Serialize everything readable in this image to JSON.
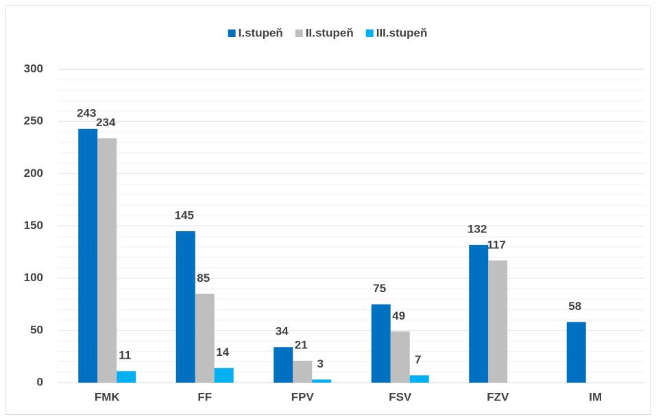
{
  "chart_data": {
    "type": "bar",
    "categories": [
      "FMK",
      "FF",
      "FPV",
      "FSV",
      "FZV",
      "IM"
    ],
    "series": [
      {
        "name": "I.stupeň",
        "color": "#0070c0",
        "values": [
          243,
          145,
          34,
          75,
          132,
          58
        ]
      },
      {
        "name": "II.stupeň",
        "color": "#bfbfbf",
        "values": [
          234,
          85,
          21,
          49,
          117,
          null
        ]
      },
      {
        "name": "III.stupeň",
        "color": "#00b0f0",
        "values": [
          11,
          14,
          3,
          7,
          null,
          null
        ]
      }
    ],
    "ylim": [
      0,
      300
    ],
    "yticks": [
      0,
      50,
      100,
      150,
      200,
      250,
      300
    ],
    "minor_yticks": [
      10,
      20,
      30,
      40,
      60,
      70,
      80,
      90,
      110,
      120,
      130,
      140,
      160,
      170,
      180,
      190,
      210,
      220,
      230,
      240,
      260,
      270,
      280,
      290
    ],
    "grid": true,
    "legend": "top"
  }
}
